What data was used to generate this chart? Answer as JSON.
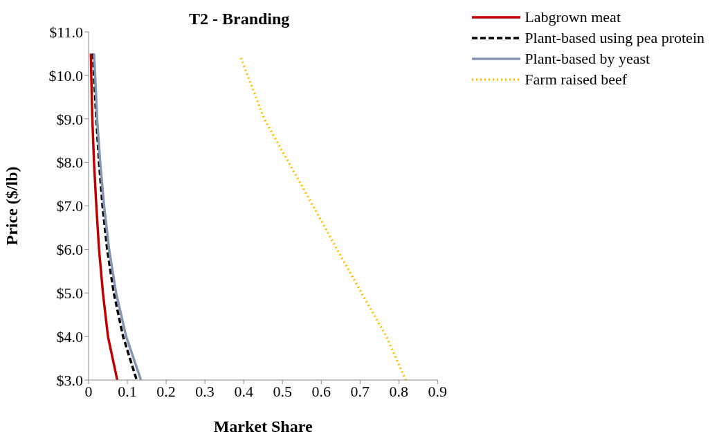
{
  "chart_data": {
    "type": "line",
    "title": "T2 - Branding",
    "xlabel": "Market Share",
    "ylabel": "Price ($/lb)",
    "xlim": [
      0,
      0.9
    ],
    "xticks": [
      0,
      0.1,
      0.2,
      0.3,
      0.4,
      0.5,
      0.6,
      0.7,
      0.8,
      0.9
    ],
    "ylim": [
      3,
      11
    ],
    "yticks": [
      {
        "value": 3,
        "label": "$3.0"
      },
      {
        "value": 4,
        "label": "$4.0"
      },
      {
        "value": 5,
        "label": "$5.0"
      },
      {
        "value": 6,
        "label": "$6.0"
      },
      {
        "value": 7,
        "label": "$7.0"
      },
      {
        "value": 8,
        "label": "$8.0"
      },
      {
        "value": 9,
        "label": "$9.0"
      },
      {
        "value": 10,
        "label": "$10.0"
      },
      {
        "value": 11,
        "label": "$11.0"
      }
    ],
    "grid": false,
    "legend": "top right",
    "marker": "none",
    "series": [
      {
        "name": "Labgrown meat",
        "color": "#c00000",
        "line_style": "solid",
        "x": [
          0.006,
          0.007,
          0.0097,
          0.014,
          0.02,
          0.027,
          0.037,
          0.05,
          0.074
        ],
        "values": [
          10.5,
          10,
          9,
          8,
          7,
          6,
          5,
          4,
          3
        ]
      },
      {
        "name": "Plant-based using pea protein",
        "color": "#000000",
        "line_style": "dashed",
        "x": [
          0.0115,
          0.014,
          0.02,
          0.027,
          0.036,
          0.048,
          0.065,
          0.089,
          0.124
        ],
        "values": [
          10.5,
          10,
          9,
          8,
          7,
          6,
          5,
          4,
          3
        ]
      },
      {
        "name": "Plant-based by yeast",
        "color": "#8497b0",
        "line_style": "solid",
        "x": [
          0.014,
          0.017,
          0.022,
          0.03,
          0.04,
          0.053,
          0.071,
          0.097,
          0.135
        ],
        "values": [
          10.5,
          10,
          9,
          8,
          7,
          6,
          5,
          4,
          3
        ]
      },
      {
        "name": "Farm raised beef",
        "color": "#ffc000",
        "line_style": "dotted",
        "x": [
          0.393,
          0.453,
          0.516,
          0.579,
          0.641,
          0.704,
          0.768,
          0.818
        ],
        "values": [
          10.4,
          9,
          8,
          7,
          6,
          5,
          4,
          3
        ]
      }
    ]
  }
}
